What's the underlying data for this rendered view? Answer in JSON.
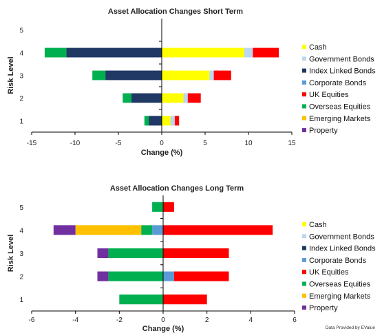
{
  "colors": {
    "Cash": "#ffff00",
    "Government Bonds": "#bdd7ee",
    "Index Linked Bonds": "#1f3864",
    "Corporate Bonds": "#5b9bd5",
    "UK Equities": "#ff0000",
    "Overseas Equities": "#00b050",
    "Emerging Markets": "#ffc000",
    "Property": "#7030a0"
  },
  "credit": "Data Provided by EValue",
  "chart_data": [
    {
      "type": "bar",
      "orientation": "horizontal",
      "stacked": true,
      "title": "Asset Allocation Changes Short Term",
      "xlabel": "Change (%)",
      "ylabel": "Risk Level",
      "categories": [
        "1",
        "2",
        "3",
        "4",
        "5"
      ],
      "xlim": [
        -15,
        15
      ],
      "xticks": [
        "-15",
        "-10",
        "-5",
        "0",
        "5",
        "10",
        "15"
      ],
      "legend_position": "right",
      "series": [
        {
          "name": "Cash",
          "values": [
            1,
            2.5,
            5.5,
            9.5,
            0
          ]
        },
        {
          "name": "Government Bonds",
          "values": [
            0.5,
            0.5,
            0.5,
            1,
            0
          ]
        },
        {
          "name": "Index Linked Bonds",
          "values": [
            -1.5,
            -3.5,
            -6.5,
            -11,
            0
          ]
        },
        {
          "name": "Corporate Bonds",
          "values": [
            0,
            0,
            0,
            0,
            0
          ]
        },
        {
          "name": "UK Equities",
          "values": [
            0.5,
            1.5,
            2,
            3,
            0
          ]
        },
        {
          "name": "Overseas Equities",
          "values": [
            -0.5,
            -1,
            -1.5,
            -2.5,
            0
          ]
        },
        {
          "name": "Emerging Markets",
          "values": [
            0,
            0,
            0,
            0,
            0
          ]
        },
        {
          "name": "Property",
          "values": [
            0,
            0,
            0,
            0,
            0
          ]
        }
      ]
    },
    {
      "type": "bar",
      "orientation": "horizontal",
      "stacked": true,
      "title": "Asset Allocation Changes Long Term",
      "xlabel": "Change (%)",
      "ylabel": "Risk Level",
      "categories": [
        "1",
        "2",
        "3",
        "4",
        "5"
      ],
      "xlim": [
        -6,
        6
      ],
      "xticks": [
        "-6",
        "-4",
        "-2",
        "0",
        "2",
        "4",
        "6"
      ],
      "legend_position": "right",
      "series": [
        {
          "name": "Cash",
          "values": [
            0,
            0,
            0,
            0,
            0
          ]
        },
        {
          "name": "Government Bonds",
          "values": [
            0,
            0,
            0,
            0,
            0
          ]
        },
        {
          "name": "Index Linked Bonds",
          "values": [
            0,
            0,
            0,
            0,
            0
          ]
        },
        {
          "name": "Corporate Bonds",
          "values": [
            0,
            0.5,
            0,
            -0.5,
            0
          ]
        },
        {
          "name": "UK Equities",
          "values": [
            2,
            2.5,
            3,
            5,
            0.5
          ]
        },
        {
          "name": "Overseas Equities",
          "values": [
            -2,
            -2.5,
            -2.5,
            -0.5,
            -0.5
          ]
        },
        {
          "name": "Emerging Markets",
          "values": [
            0,
            0,
            0,
            -3,
            0
          ]
        },
        {
          "name": "Property",
          "values": [
            0,
            -0.5,
            -0.5,
            -1,
            0
          ]
        }
      ]
    }
  ]
}
